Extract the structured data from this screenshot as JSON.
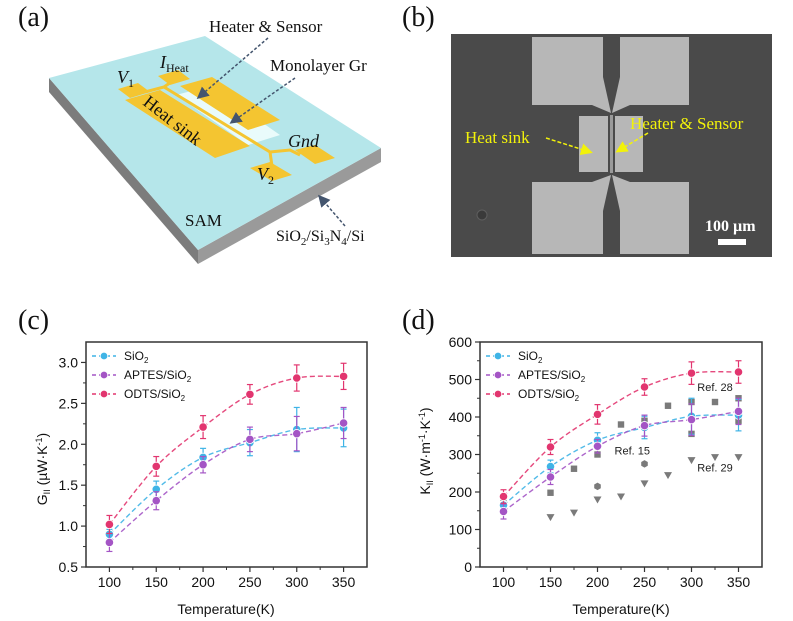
{
  "panels": {
    "a": {
      "label": "(a)",
      "annotations": {
        "heater_sensor": "Heater & Sensor",
        "monolayer": "Monolayer Gr",
        "heat_sink": "Heat sink",
        "v1_main": "V",
        "v1_sub": "1",
        "iheat_main": "I",
        "iheat_sub": "Heat",
        "gnd": "Gnd",
        "v2_main": "V",
        "v2_sub": "2",
        "sam": "SAM",
        "substrate_parts": [
          "SiO",
          "2",
          "/Si",
          "3",
          "N",
          "4",
          "/Si"
        ]
      },
      "colors": {
        "sam": "#b5e6ea",
        "electrode": "#f4c531",
        "graphene": "#e9fbfb",
        "substrate_side": "#8a8a8a",
        "arrow": "#44556e"
      }
    },
    "b": {
      "label": "(b)",
      "annotations": {
        "heat_sink": "Heat sink",
        "heater_sensor": "Heater & Sensor",
        "scale_bar": "100 µm"
      },
      "colors": {
        "background": "#4a4a4a",
        "electrode": "#b7b7b7",
        "annotation": "#f2f20a"
      }
    },
    "c": {
      "label": "(c)"
    },
    "d": {
      "label": "(d)"
    }
  },
  "chart_data": [
    {
      "id": "c",
      "type": "line",
      "title": "",
      "xlabel": "Temperature(K)",
      "ylabel_main": "G",
      "ylabel_sub": "II",
      "ylabel_unit": " (µW·K",
      "ylabel_exp": "-1",
      "ylabel_end": ")",
      "xlim": [
        75,
        375
      ],
      "ylim": [
        0.5,
        3.25
      ],
      "xticks": [
        100,
        150,
        200,
        250,
        300,
        350
      ],
      "yticks": [
        0.5,
        1.0,
        1.5,
        2.0,
        2.5,
        3.0
      ],
      "ytick_labels": [
        "0.5",
        "1.0",
        "1.5",
        "2.0",
        "2.5",
        "3.0"
      ],
      "legend_position": "top-left",
      "x": [
        100,
        150,
        200,
        250,
        300,
        350
      ],
      "series": [
        {
          "name": "SiO2",
          "label_main": "SiO",
          "label_sub": "2",
          "color": "#3fb4e6",
          "values": [
            0.9,
            1.45,
            1.84,
            2.02,
            2.18,
            2.2
          ],
          "errors": [
            0.06,
            0.1,
            0.11,
            0.16,
            0.27,
            0.23
          ]
        },
        {
          "name": "APTES/SiO2",
          "label_main": "APTES/SiO",
          "label_sub": "2",
          "color": "#a455c5",
          "values": [
            0.8,
            1.31,
            1.75,
            2.06,
            2.13,
            2.26
          ],
          "errors": [
            0.11,
            0.11,
            0.1,
            0.15,
            0.21,
            0.19
          ]
        },
        {
          "name": "ODTS/SiO2",
          "label_main": "ODTS/SiO",
          "label_sub": "2",
          "color": "#e2356f",
          "values": [
            1.02,
            1.73,
            2.21,
            2.61,
            2.81,
            2.83
          ],
          "errors": [
            0.11,
            0.12,
            0.14,
            0.12,
            0.16,
            0.16
          ]
        }
      ]
    },
    {
      "id": "d",
      "type": "line",
      "title": "",
      "xlabel": "Temperature(K)",
      "ylabel_main": "K",
      "ylabel_sub": "II",
      "ylabel_unit": " (W·m",
      "ylabel_exp1": "-1",
      "ylabel_mid": "·K",
      "ylabel_exp2": "-1",
      "ylabel_end": ")",
      "xlim": [
        75,
        375
      ],
      "ylim": [
        0,
        600
      ],
      "xticks": [
        100,
        150,
        200,
        250,
        300,
        350
      ],
      "yticks": [
        0,
        100,
        200,
        300,
        400,
        500,
        600
      ],
      "ytick_labels": [
        "0",
        "100",
        "200",
        "300",
        "400",
        "500",
        "600"
      ],
      "legend_position": "top-left",
      "x": [
        100,
        150,
        200,
        250,
        300,
        350
      ],
      "series": [
        {
          "name": "SiO2",
          "label_main": "SiO",
          "label_sub": "2",
          "color": "#3fb4e6",
          "values": [
            165,
            268,
            338,
            372,
            402,
            405
          ],
          "errors": [
            15,
            17,
            20,
            30,
            48,
            42
          ]
        },
        {
          "name": "APTES/SiO2",
          "label_main": "APTES/SiO",
          "label_sub": "2",
          "color": "#a455c5",
          "values": [
            148,
            240,
            322,
            377,
            393,
            415
          ],
          "errors": [
            20,
            20,
            18,
            28,
            42,
            35
          ]
        },
        {
          "name": "ODTS/SiO2",
          "label_main": "ODTS/SiO",
          "label_sub": "2",
          "color": "#e2356f",
          "values": [
            188,
            320,
            407,
            480,
            517,
            520
          ],
          "errors": [
            18,
            20,
            26,
            22,
            30,
            30
          ]
        }
      ],
      "references": [
        {
          "name": "Ref. 28",
          "marker": "square",
          "color": "#7a7a7a",
          "points": [
            [
              100,
              185
            ],
            [
              150,
              198
            ],
            [
              175,
              262
            ],
            [
              200,
              300
            ],
            [
              225,
              380
            ],
            [
              250,
              390
            ],
            [
              275,
              430
            ],
            [
              300,
              440
            ],
            [
              300,
              355
            ],
            [
              325,
              440
            ],
            [
              350,
              450
            ],
            [
              350,
              390
            ]
          ]
        },
        {
          "name": "Ref. 15",
          "marker": "hexagon",
          "color": "#7a7a7a",
          "points": [
            [
              200,
              215
            ],
            [
              250,
              275
            ]
          ]
        },
        {
          "name": "Ref. 29",
          "marker": "triangle-down",
          "color": "#7a7a7a",
          "points": [
            [
              150,
              133
            ],
            [
              175,
              145
            ],
            [
              200,
              180
            ],
            [
              225,
              188
            ],
            [
              250,
              223
            ],
            [
              275,
              245
            ],
            [
              300,
              285
            ],
            [
              325,
              293
            ],
            [
              350,
              293
            ]
          ]
        }
      ],
      "annotations": [
        {
          "text": "Ref. 28",
          "x": 325,
          "y": 470
        },
        {
          "text": "Ref. 15",
          "x": 237,
          "y": 300
        },
        {
          "text": "Ref. 29",
          "x": 325,
          "y": 255
        }
      ]
    }
  ]
}
